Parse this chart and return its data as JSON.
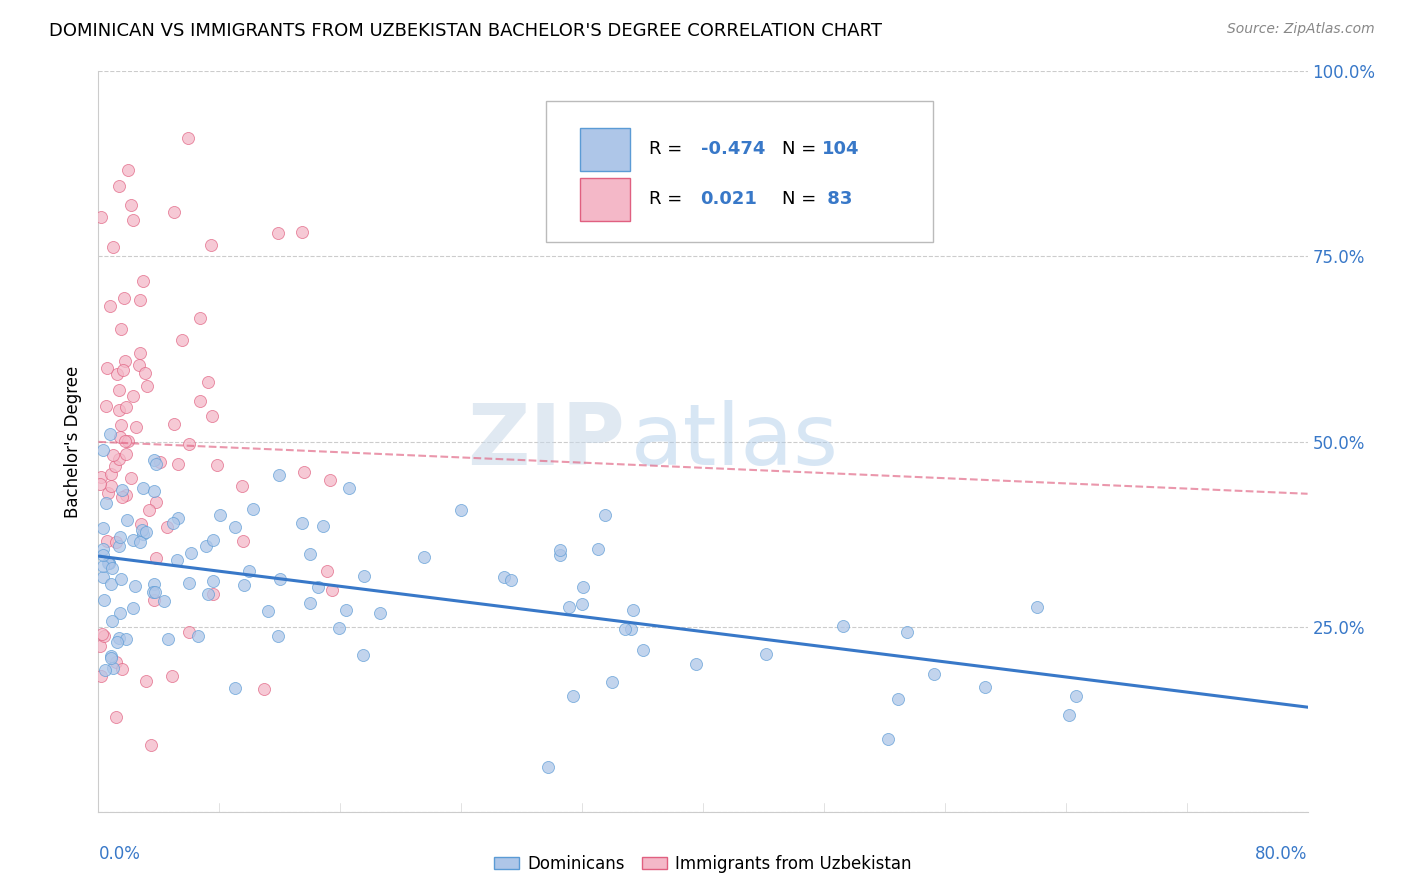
{
  "title": "DOMINICAN VS IMMIGRANTS FROM UZBEKISTAN BACHELOR'S DEGREE CORRELATION CHART",
  "source": "Source: ZipAtlas.com",
  "ylabel": "Bachelor's Degree",
  "ytick_vals": [
    0.0,
    0.25,
    0.5,
    0.75,
    1.0
  ],
  "ytick_labels": [
    "",
    "25.0%",
    "50.0%",
    "75.0%",
    "100.0%"
  ],
  "legend_blue_R": "-0.474",
  "legend_blue_N": "104",
  "legend_pink_R": "0.021",
  "legend_pink_N": "83",
  "blue_fill": "#aec6e8",
  "blue_edge": "#5b9bd5",
  "pink_fill": "#f4b8c8",
  "pink_edge": "#e06080",
  "trend_blue_color": "#3878c8",
  "trend_pink_color": "#e06080",
  "background_color": "#ffffff",
  "x_min": 0.0,
  "x_max": 80.0,
  "y_min": 0.0,
  "y_max": 1.0,
  "blue_seed": 42,
  "pink_seed": 7,
  "N_blue": 104,
  "N_pink": 83
}
